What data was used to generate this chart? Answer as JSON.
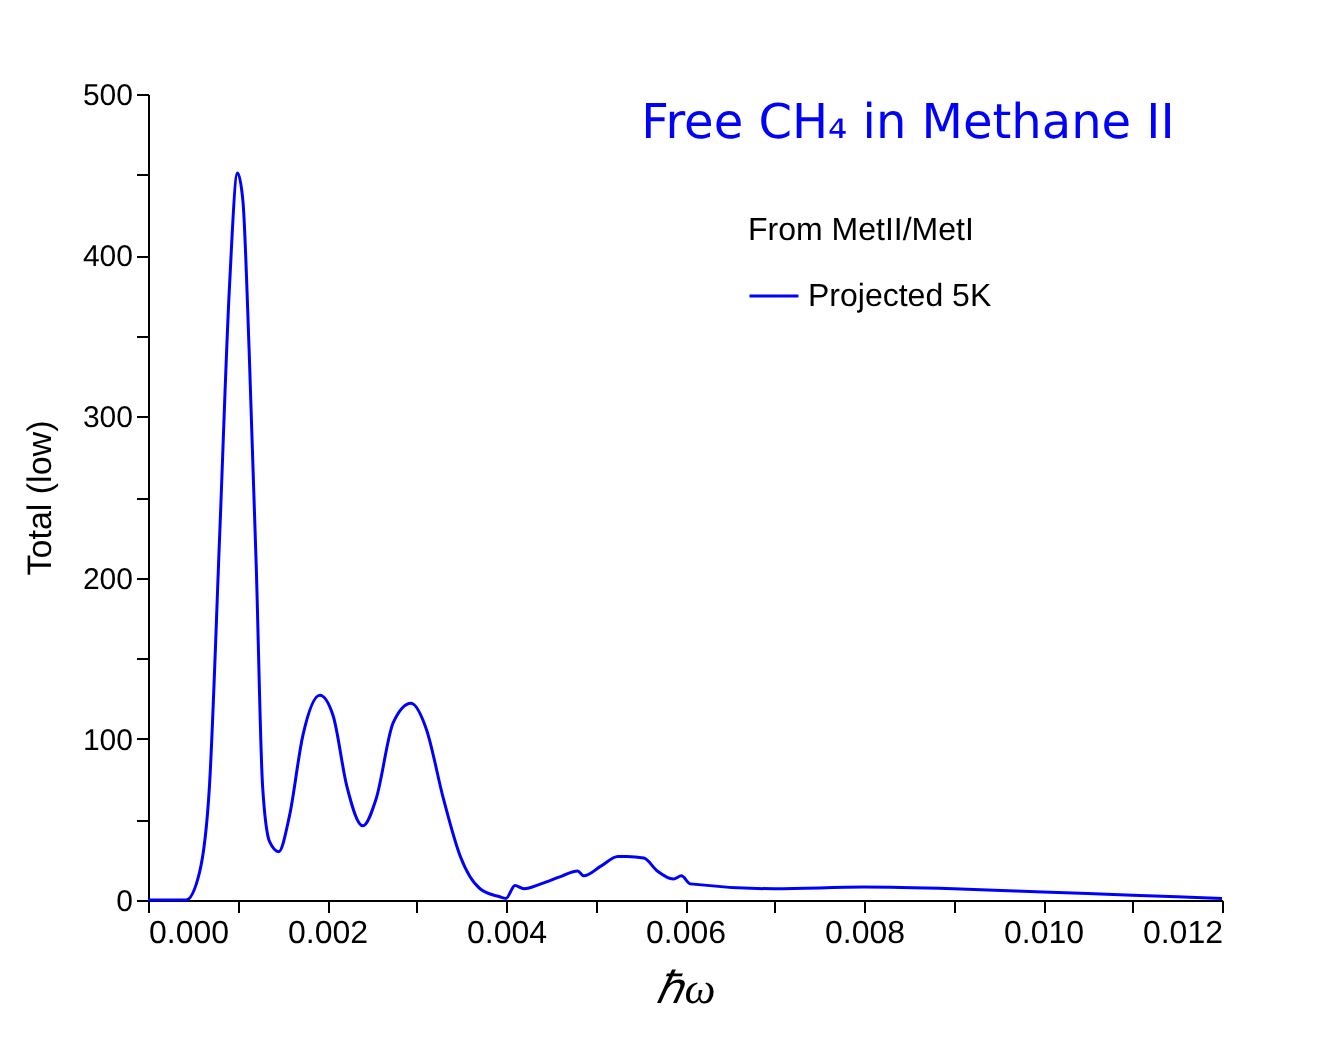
{
  "chart_data": {
    "type": "line",
    "title": "Free CH₄ in Methane II",
    "xlabel": "ℏω",
    "ylabel": "Total (low)",
    "legend_title": "From MetII/MetI",
    "x": [
      0,
      0.0002,
      0.000425,
      0.000575,
      0.000687,
      0.0008,
      0.00091,
      0.001,
      0.00106,
      0.00113,
      0.00121,
      0.00128,
      0.00136,
      0.00146,
      0.00158,
      0.00173,
      0.00192,
      0.00207,
      0.00222,
      0.0024,
      0.00255,
      0.00274,
      0.00294,
      0.00311,
      0.0033,
      0.00349,
      0.00371,
      0.00393,
      0.004,
      0.0041,
      0.0042,
      0.00439,
      0.00463,
      0.0048,
      0.00487,
      0.00506,
      0.00525,
      0.00535,
      0.00554,
      0.00569,
      0.00587,
      0.00596,
      0.00606,
      0.007,
      0.008,
      0.009,
      0.01,
      0.011,
      0.012
    ],
    "series": [
      {
        "name": "Projected 5K",
        "color": "#0000ff",
        "values": [
          0,
          0,
          0,
          17,
          71,
          225,
          380,
          451,
          434,
          341,
          206,
          71,
          36,
          30,
          52,
          102,
          127,
          114,
          71,
          46,
          63,
          110,
          122,
          106,
          63,
          27,
          7,
          2,
          1,
          9,
          7,
          10,
          15,
          18,
          15,
          21,
          27,
          27,
          26,
          18,
          13,
          15,
          10,
          7,
          8,
          7,
          5,
          3,
          1
        ]
      }
    ],
    "xlim": [
      0,
      0.012
    ],
    "ylim": [
      0,
      500
    ],
    "xticks": [
      {
        "value": 0,
        "label": "0.000"
      },
      {
        "value": 0.001,
        "label": null
      },
      {
        "value": 0.002,
        "label": "0.002"
      },
      {
        "value": 0.003,
        "label": null
      },
      {
        "value": 0.004,
        "label": "0.004"
      },
      {
        "value": 0.005,
        "label": null
      },
      {
        "value": 0.006,
        "label": "0.006"
      },
      {
        "value": 0.007,
        "label": null
      },
      {
        "value": 0.008,
        "label": "0.008"
      },
      {
        "value": 0.009,
        "label": null
      },
      {
        "value": 0.01,
        "label": "0.010"
      },
      {
        "value": 0.011,
        "label": null
      },
      {
        "value": 0.012,
        "label": "0.012"
      }
    ],
    "yticks": [
      0,
      {
        "value": 50,
        "label": null
      },
      100,
      {
        "value": 150,
        "label": null
      },
      200,
      {
        "value": 250,
        "label": null
      },
      300,
      {
        "value": 350,
        "label": null
      },
      400,
      {
        "value": 450,
        "label": null
      },
      500
    ],
    "legend": "top right",
    "grid": false,
    "marker": "none",
    "line_style": "solid"
  }
}
